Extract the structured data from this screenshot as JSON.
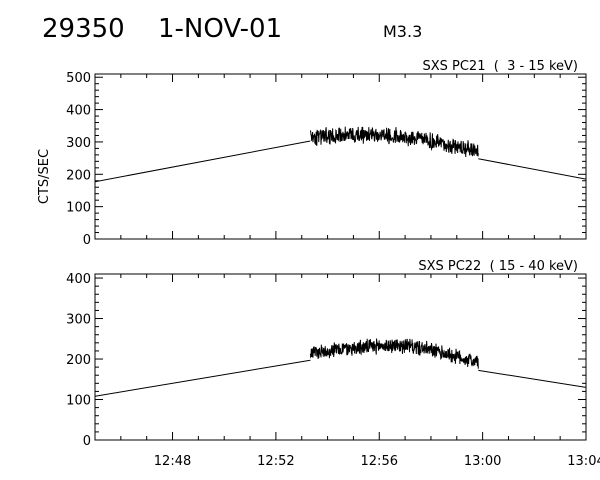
{
  "header": {
    "event_id": "29350",
    "date": "1-NOV-01",
    "flare_class": "M3.3"
  },
  "chart_data": [
    {
      "type": "line",
      "title": "SXS PC21  (  3 - 15 keV)",
      "ylabel": "CTS/SEC",
      "xlabel": "",
      "xlim": [
        "12:45",
        "13:04"
      ],
      "ylim": [
        0,
        510
      ],
      "yticks": [
        0,
        100,
        200,
        300,
        400,
        500
      ],
      "xticks": [
        "12:48",
        "12:52",
        "12:56",
        "13:00",
        "13:04"
      ],
      "series": [
        {
          "segments": [
            {
              "style": "straight",
              "points": [
                [
                  "12:45",
                  177
                ],
                [
                  "12:53:20",
                  303
                ]
              ]
            },
            {
              "style": "noisy",
              "start": "12:53:20",
              "end": "12:59:50",
              "amplitude": 30,
              "points": [
                [
                  "12:53:20",
                  312
                ],
                [
                  "12:54:30",
                  322
                ],
                [
                  "12:56:00",
                  322
                ],
                [
                  "12:57:30",
                  310
                ],
                [
                  "12:58:40",
                  290
                ],
                [
                  "12:59:50",
                  275
                ]
              ]
            },
            {
              "style": "straight",
              "points": [
                [
                  "12:59:50",
                  248
                ],
                [
                  "13:04",
                  185
                ]
              ]
            }
          ]
        }
      ]
    },
    {
      "type": "line",
      "title": "SXS PC22  ( 15 - 40 keV)",
      "ylabel": "",
      "xlabel": "",
      "xlim": [
        "12:45",
        "13:04"
      ],
      "ylim": [
        0,
        410
      ],
      "yticks": [
        0,
        100,
        200,
        300,
        400
      ],
      "xticks": [
        "12:48",
        "12:52",
        "12:56",
        "13:00",
        "13:04"
      ],
      "series": [
        {
          "segments": [
            {
              "style": "straight",
              "points": [
                [
                  "12:45",
                  108
                ],
                [
                  "12:53:20",
                  197
                ]
              ]
            },
            {
              "style": "noisy",
              "start": "12:53:20",
              "end": "12:59:50",
              "amplitude": 22,
              "points": [
                [
                  "12:53:20",
                  215
                ],
                [
                  "12:54:30",
                  225
                ],
                [
                  "12:56:00",
                  232
                ],
                [
                  "12:57:00",
                  234
                ],
                [
                  "12:58:00",
                  222
                ],
                [
                  "12:59:50",
                  192
                ]
              ]
            },
            {
              "style": "straight",
              "points": [
                [
                  "12:59:50",
                  172
                ],
                [
                  "13:04",
                  130
                ]
              ]
            }
          ]
        }
      ]
    }
  ]
}
